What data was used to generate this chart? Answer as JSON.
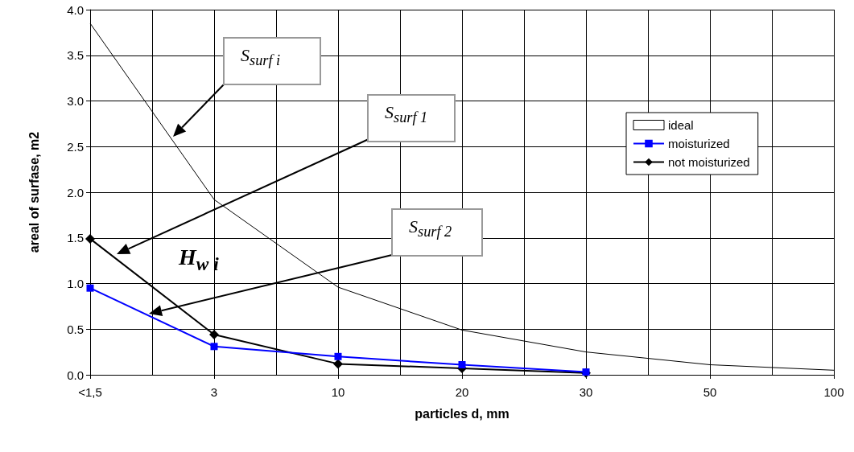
{
  "chart_data": {
    "type": "line",
    "xlabel": "particles d, mm",
    "ylabel": "areal of surfase, m2",
    "categories": [
      "<1,5",
      "3",
      "10",
      "20",
      "30",
      "50",
      "100"
    ],
    "series": [
      {
        "name": "ideal",
        "color": "#000000",
        "marker": "none",
        "values": [
          3.85,
          1.92,
          0.96,
          0.49,
          0.25,
          0.11,
          0.05
        ]
      },
      {
        "name": "moisturized",
        "color": "#0000ff",
        "marker": "square",
        "values": [
          0.95,
          0.31,
          0.2,
          0.11,
          0.03,
          null,
          null
        ]
      },
      {
        "name": "not moisturized",
        "color": "#000000",
        "marker": "diamond",
        "values": [
          1.49,
          0.44,
          0.12,
          0.07,
          0.02,
          null,
          null
        ]
      }
    ],
    "ylim": [
      0,
      4
    ],
    "yticks": [
      {
        "value": 0,
        "label": "0.0"
      },
      {
        "value": 0.5,
        "label": "0.5"
      },
      {
        "value": 1,
        "label": "1.0"
      },
      {
        "value": 1.5,
        "label": "1.5"
      },
      {
        "value": 2,
        "label": "2.0"
      },
      {
        "value": 2.5,
        "label": "2.5"
      },
      {
        "value": 3,
        "label": "3.0"
      },
      {
        "value": 3.5,
        "label": "3.5"
      },
      {
        "value": 4,
        "label": "4.0"
      }
    ],
    "annotations": [
      "S$_{surf i}$",
      "S$_{surf 1}$",
      "S$_{surf 2}$",
      "H$_{w i}$"
    ],
    "grid": true,
    "legend": "right"
  }
}
